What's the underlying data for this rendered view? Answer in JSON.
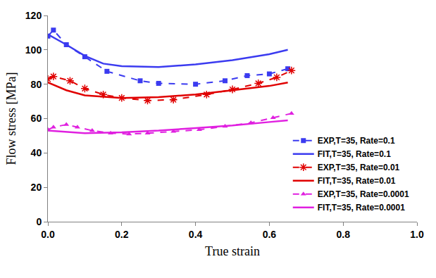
{
  "chart_data": {
    "type": "line",
    "x_label": "True strain",
    "y_label": "Flow stress [MPa]",
    "xlim": [
      0,
      1.0
    ],
    "xticks": [
      {
        "value": 0,
        "label": "0.0"
      },
      0.2,
      0.4,
      0.6,
      0.8,
      {
        "value": 1.0,
        "label": "1.0"
      }
    ],
    "ylim": [
      0,
      120
    ],
    "yticks": [
      0,
      20,
      40,
      60,
      80,
      100,
      120
    ],
    "grid": false,
    "legend": "bottom right",
    "series": [
      {
        "name": "EXP,T=35, Rate=0.1",
        "color": "#3b3bf0",
        "marker": "square",
        "line_style": "dash",
        "x": [
          0.0,
          0.015,
          0.05,
          0.1,
          0.16,
          0.25,
          0.3,
          0.4,
          0.48,
          0.54,
          0.6,
          0.65
        ],
        "values": [
          108,
          111.5,
          103,
          96,
          87.5,
          82,
          80.5,
          80,
          82,
          85,
          86,
          89
        ]
      },
      {
        "name": "FIT,T=35, Rate=0.1",
        "color": "#3b3bf0",
        "marker": "none",
        "line_style": "solid",
        "x": [
          0.0,
          0.05,
          0.1,
          0.15,
          0.2,
          0.3,
          0.4,
          0.5,
          0.6,
          0.65
        ],
        "values": [
          109,
          103,
          96.5,
          92,
          90.5,
          90,
          91.5,
          94,
          97.5,
          100
        ]
      },
      {
        "name": "EXP,T=35, Rate=0.01",
        "color": "#e00000",
        "marker": "asterisk",
        "line_style": "dash",
        "x": [
          0.0,
          0.015,
          0.06,
          0.1,
          0.15,
          0.2,
          0.27,
          0.34,
          0.43,
          0.5,
          0.57,
          0.62,
          0.66
        ],
        "values": [
          83,
          84.5,
          82,
          77.5,
          74,
          72,
          70.5,
          71,
          74,
          77,
          80.5,
          84,
          88
        ]
      },
      {
        "name": "FIT,T=35, Rate=0.01",
        "color": "#e00000",
        "marker": "none",
        "line_style": "solid",
        "x": [
          0.0,
          0.05,
          0.1,
          0.2,
          0.3,
          0.4,
          0.5,
          0.6,
          0.65
        ],
        "values": [
          81,
          76.5,
          73.5,
          72,
          72.5,
          74,
          76.5,
          79,
          81
        ]
      },
      {
        "name": "EXP,T=35, Rate=0.0001",
        "color": "#e020e0",
        "marker": "triangle",
        "line_style": "dash",
        "x": [
          0.0,
          0.015,
          0.05,
          0.08,
          0.12,
          0.17,
          0.22,
          0.27,
          0.34,
          0.41,
          0.48,
          0.55,
          0.61,
          0.66
        ],
        "values": [
          53.5,
          55,
          56.5,
          55,
          53,
          51.5,
          51,
          51.5,
          52.5,
          53.5,
          55.5,
          57.5,
          60.5,
          63
        ]
      },
      {
        "name": "FIT,T=35, Rate=0.0001",
        "color": "#e020e0",
        "marker": "none",
        "line_style": "solid",
        "x": [
          0.0,
          0.1,
          0.2,
          0.3,
          0.4,
          0.5,
          0.6,
          0.65
        ],
        "values": [
          53,
          51.5,
          52,
          53,
          54.5,
          56,
          58,
          59
        ]
      }
    ]
  }
}
